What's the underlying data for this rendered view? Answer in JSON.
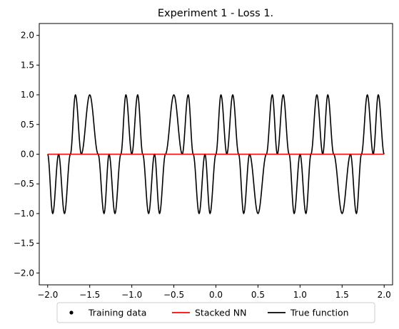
{
  "chart_data": {
    "type": "line",
    "title": "Experiment 1 - Loss 1.",
    "xlabel": "",
    "ylabel": "",
    "xlim": [
      -2.1,
      2.1
    ],
    "ylim": [
      -2.2,
      2.2
    ],
    "xticks": [
      -2.0,
      -1.5,
      -1.0,
      -0.5,
      0.0,
      0.5,
      1.0,
      1.5,
      2.0
    ],
    "xtick_labels": [
      "−2.0",
      "−1.5",
      "−1.0",
      "−0.5",
      "0.0",
      "0.5",
      "1.0",
      "1.5",
      "2.0"
    ],
    "yticks": [
      2.0,
      1.5,
      1.0,
      0.5,
      0.0,
      -0.5,
      -1.0,
      -1.5,
      -2.0
    ],
    "ytick_labels": [
      "2.0",
      "1.5",
      "1.0",
      "0.5",
      "0.0",
      "−0.5",
      "−1.0",
      "−1.5",
      "−2.0"
    ],
    "grid": false,
    "legend_position": "bottom-center, below axes",
    "legend": [
      {
        "label": "Training data",
        "marker": "dot",
        "color": "#000000"
      },
      {
        "label": "Stacked NN",
        "marker": "line",
        "color": "#ff0000"
      },
      {
        "label": "True function",
        "marker": "line",
        "color": "#000000"
      }
    ],
    "series": [
      {
        "name": "True function",
        "color": "#000000",
        "x": [
          -2.0,
          -1.94,
          -1.87,
          -1.8,
          -1.73,
          -1.67,
          -1.6,
          -1.5,
          -1.4,
          -1.33,
          -1.27,
          -1.2,
          -1.13,
          -1.07,
          -1.0,
          -0.93,
          -0.87,
          -0.8,
          -0.73,
          -0.67,
          -0.6,
          -0.5,
          -0.4,
          -0.33,
          -0.27,
          -0.2,
          -0.13,
          -0.07,
          0.0,
          0.06,
          0.13,
          0.2,
          0.27,
          0.33,
          0.4,
          0.5,
          0.6,
          0.67,
          0.73,
          0.8,
          0.87,
          0.93,
          1.0,
          1.07,
          1.13,
          1.2,
          1.27,
          1.33,
          1.4,
          1.5,
          1.6,
          1.67,
          1.73,
          1.8,
          1.87,
          1.93,
          2.0
        ],
        "y": [
          0.0,
          -1.0,
          0.0,
          -1.0,
          0.0,
          1.0,
          0.0,
          1.0,
          0.0,
          -1.0,
          0.0,
          -1.0,
          0.0,
          1.0,
          0.0,
          1.0,
          0.0,
          -1.0,
          0.0,
          -1.0,
          0.0,
          1.0,
          0.0,
          1.0,
          0.0,
          -1.0,
          0.0,
          -1.0,
          0.0,
          1.0,
          0.0,
          1.0,
          0.0,
          -1.0,
          0.0,
          -1.0,
          0.0,
          1.0,
          0.0,
          1.0,
          0.0,
          -1.0,
          0.0,
          -1.0,
          0.0,
          1.0,
          0.0,
          1.0,
          0.0,
          -1.0,
          0.0,
          -1.0,
          0.0,
          1.0,
          0.0,
          1.0,
          0.0
        ]
      },
      {
        "name": "Stacked NN",
        "color": "#ff0000",
        "x": [
          -2.0,
          2.0
        ],
        "y": [
          0.0,
          0.0
        ]
      }
    ]
  }
}
